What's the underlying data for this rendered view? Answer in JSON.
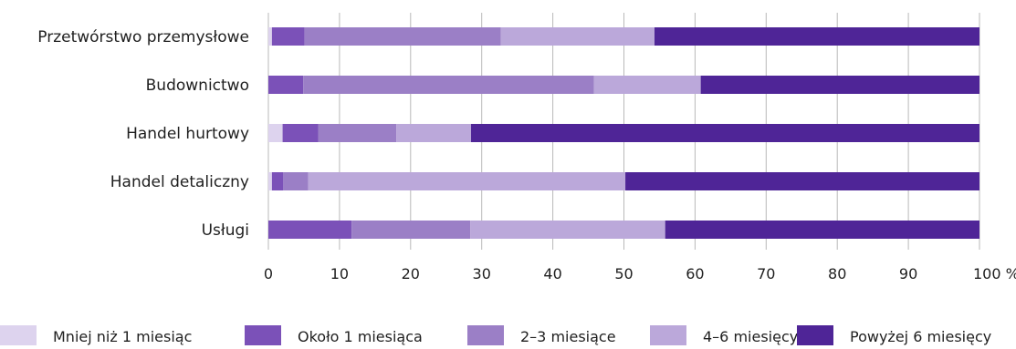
{
  "chart_data": {
    "type": "bar",
    "orientation": "horizontal",
    "stacked": true,
    "categories": [
      "Przetwórstwo przemysłowe",
      "Budownictwo",
      "Handel hurtowy",
      "Handel detaliczny",
      "Usługi"
    ],
    "series": [
      {
        "name": "Mniej niż 1 miesiąc",
        "color": "#ddd3ee",
        "values": [
          0.5,
          0,
          2,
          0.5,
          0
        ]
      },
      {
        "name": "Około 1 miesiąca",
        "color": "#7b51b8",
        "values": [
          4.6,
          4.9,
          5,
          1.6,
          11.7
        ]
      },
      {
        "name": "2–3 miesiące",
        "color": "#9b7fc6",
        "values": [
          27.6,
          40.9,
          11,
          3.5,
          16.7
        ]
      },
      {
        "name": "4–6 miesięcy",
        "color": "#bba8da",
        "values": [
          21.6,
          15,
          10.5,
          44.6,
          27.4
        ]
      },
      {
        "name": "Powyżej 6 miesięcy",
        "color": "#4f2597",
        "values": [
          45.7,
          39.2,
          71.5,
          49.8,
          44.2
        ]
      }
    ],
    "xlim": [
      0,
      100
    ],
    "x_ticks": [
      "0",
      "10",
      "20",
      "30",
      "40",
      "50",
      "60",
      "70",
      "80",
      "90",
      "100 %"
    ],
    "grid": "vertical",
    "legend": "bottom"
  }
}
